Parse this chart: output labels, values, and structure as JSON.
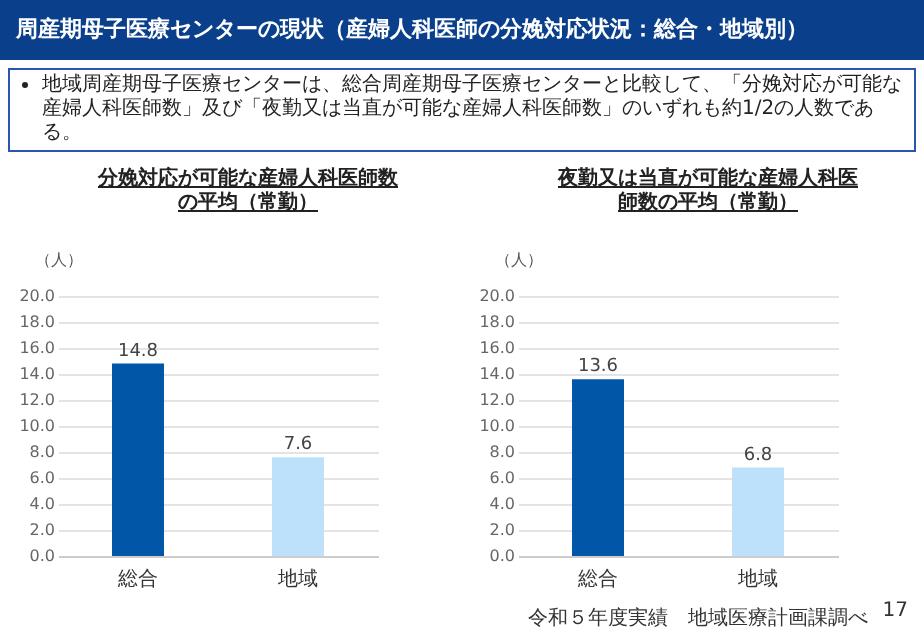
{
  "chart_data": [
    {
      "type": "bar",
      "title": "分娩対応が可能な産婦人科医師数の平均（常勤）",
      "ylabel": "（人）",
      "categories": [
        "総合",
        "地域"
      ],
      "values": [
        14.8,
        7.6
      ],
      "colors": [
        "#0057a8",
        "#bde0fb"
      ],
      "ylim": [
        0,
        20
      ],
      "yticks": [
        {
          "value": 0,
          "label": "0.0"
        },
        {
          "value": 2,
          "label": "2.0"
        },
        {
          "value": 4,
          "label": "4.0"
        },
        {
          "value": 6,
          "label": "6.0"
        },
        {
          "value": 8,
          "label": "8.0"
        },
        {
          "value": 10,
          "label": "10.0"
        },
        {
          "value": 12,
          "label": "12.0"
        },
        {
          "value": 14,
          "label": "14.0"
        },
        {
          "value": 16,
          "label": "16.0"
        },
        {
          "value": 18,
          "label": "18.0"
        },
        {
          "value": 20,
          "label": "20.0"
        }
      ],
      "grid": "y",
      "data_labels": true,
      "annotations": [
        "周産期母子医療センターの現状（産婦人科医師の分娩対応状況：総合・地域別）",
        "地域周産期母子医療センターは、総合周産期母子医療センターと比較して、「分娩対応が可能な産婦人科医師数」及び「夜勤又は当直が可能な産婦人科医師数」のいずれも約1/2の人数である。"
      ]
    },
    {
      "type": "bar",
      "title": "夜勤又は当直が可能な産婦人科医師数の平均（常勤）",
      "ylabel": "（人）",
      "categories": [
        "総合",
        "地域"
      ],
      "values": [
        13.6,
        6.8
      ],
      "colors": [
        "#0057a8",
        "#bde0fb"
      ],
      "ylim": [
        0,
        20
      ],
      "yticks": [
        {
          "value": 0,
          "label": "0.0"
        },
        {
          "value": 2,
          "label": "2.0"
        },
        {
          "value": 4,
          "label": "4.0"
        },
        {
          "value": 6,
          "label": "6.0"
        },
        {
          "value": 8,
          "label": "8.0"
        },
        {
          "value": 10,
          "label": "10.0"
        },
        {
          "value": 12,
          "label": "12.0"
        },
        {
          "value": 14,
          "label": "14.0"
        },
        {
          "value": 16,
          "label": "16.0"
        },
        {
          "value": 18,
          "label": "18.0"
        },
        {
          "value": 20,
          "label": "20.0"
        }
      ],
      "grid": "y",
      "data_labels": true,
      "annotations": [
        "令和５年度実績　地域医療計画課調べ",
        "17"
      ]
    }
  ]
}
